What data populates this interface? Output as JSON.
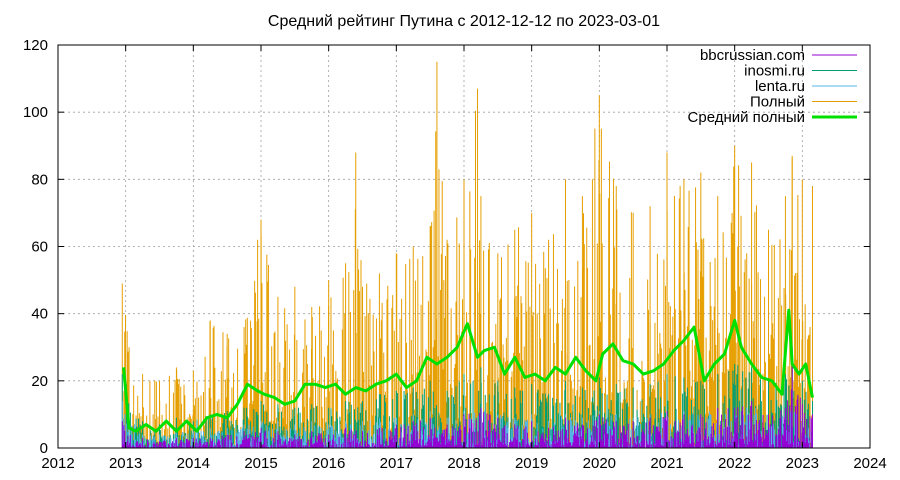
{
  "chart_data": {
    "type": "line",
    "title": "Средний рейтинг Путина с 2012-12-12  по 2023-03-01",
    "xlim": [
      2012,
      2024
    ],
    "ylim": [
      0,
      120
    ],
    "x_ticks": [
      "2012",
      "2013",
      "2014",
      "2015",
      "2016",
      "2017",
      "2018",
      "2019",
      "2020",
      "2021",
      "2022",
      "2023",
      "2024"
    ],
    "y_ticks": [
      "0",
      "20",
      "40",
      "60",
      "80",
      "100",
      "120"
    ],
    "grid": true,
    "legend_position": "top-right",
    "series": [
      {
        "name": "bbcrussian.com",
        "color": "#9400d3",
        "render": "impulses",
        "x": [
          2012.95,
          2013.25,
          2013.5,
          2013.75,
          2014.0,
          2014.25,
          2014.5,
          2014.75,
          2015.0,
          2015.25,
          2015.5,
          2015.75,
          2016.0,
          2016.25,
          2016.5,
          2016.75,
          2017.0,
          2017.25,
          2017.5,
          2017.75,
          2018.0,
          2018.25,
          2018.5,
          2018.75,
          2019.0,
          2019.25,
          2019.5,
          2019.75,
          2020.0,
          2020.25,
          2020.5,
          2020.75,
          2021.0,
          2021.25,
          2021.5,
          2021.75,
          2022.0,
          2022.25,
          2022.5,
          2022.75,
          2022.85,
          2023.0,
          2023.15
        ],
        "values": [
          8,
          3,
          2,
          3,
          3,
          3,
          4,
          5,
          6,
          5,
          4,
          5,
          4,
          6,
          5,
          6,
          7,
          8,
          9,
          7,
          10,
          12,
          9,
          7,
          8,
          6,
          9,
          7,
          10,
          8,
          8,
          9,
          11,
          10,
          10,
          12,
          12,
          14,
          10,
          12,
          30,
          13,
          10
        ]
      },
      {
        "name": "inosmi.ru",
        "color": "#009e73",
        "render": "impulses",
        "x": [
          2012.95,
          2013.25,
          2013.5,
          2013.75,
          2014.0,
          2014.25,
          2014.5,
          2014.75,
          2015.0,
          2015.25,
          2015.5,
          2015.75,
          2016.0,
          2016.25,
          2016.5,
          2016.75,
          2017.0,
          2017.25,
          2017.5,
          2017.75,
          2018.0,
          2018.25,
          2018.5,
          2018.75,
          2019.0,
          2019.25,
          2019.5,
          2019.75,
          2020.0,
          2020.25,
          2020.5,
          2020.75,
          2021.0,
          2021.25,
          2021.5,
          2021.75,
          2022.0,
          2022.25,
          2022.5,
          2022.75,
          2022.85,
          2023.0,
          2023.15
        ],
        "values": [
          22,
          8,
          7,
          9,
          8,
          10,
          11,
          12,
          14,
          13,
          12,
          13,
          12,
          14,
          14,
          16,
          17,
          18,
          20,
          17,
          22,
          24,
          20,
          18,
          19,
          16,
          20,
          18,
          21,
          19,
          18,
          19,
          22,
          21,
          20,
          22,
          25,
          24,
          20,
          22,
          28,
          20,
          14
        ]
      },
      {
        "name": "lenta.ru",
        "color": "#56b4e9",
        "render": "impulses",
        "x": [
          2012.95,
          2013.25,
          2013.5,
          2013.75,
          2014.0,
          2014.25,
          2014.5,
          2014.75,
          2015.0,
          2015.25,
          2015.5,
          2015.75,
          2016.0,
          2016.25,
          2016.5,
          2016.75,
          2017.0,
          2017.25,
          2017.5,
          2017.75,
          2018.0,
          2018.25,
          2018.5,
          2018.75,
          2019.0,
          2019.25,
          2019.5,
          2019.75,
          2020.0,
          2020.25,
          2020.5,
          2020.75,
          2021.0,
          2021.25,
          2021.5,
          2021.75,
          2022.0,
          2022.25,
          2022.5,
          2022.75,
          2022.85,
          2023.0,
          2023.15
        ],
        "values": [
          14,
          4,
          4,
          5,
          5,
          6,
          6,
          7,
          8,
          8,
          7,
          8,
          7,
          8,
          8,
          9,
          9,
          10,
          11,
          9,
          11,
          12,
          10,
          9,
          10,
          8,
          10,
          9,
          11,
          10,
          9,
          10,
          11,
          11,
          10,
          12,
          12,
          13,
          10,
          11,
          14,
          10,
          8
        ]
      },
      {
        "name": "Полный",
        "color": "#e69f00",
        "render": "impulses",
        "x": [
          2012.95,
          2013.05,
          2013.25,
          2013.5,
          2013.75,
          2014.0,
          2014.25,
          2014.5,
          2014.75,
          2014.95,
          2015.0,
          2015.25,
          2015.5,
          2015.75,
          2016.0,
          2016.25,
          2016.4,
          2016.5,
          2016.75,
          2017.0,
          2017.25,
          2017.5,
          2017.6,
          2017.75,
          2018.0,
          2018.2,
          2018.25,
          2018.5,
          2018.75,
          2019.0,
          2019.25,
          2019.5,
          2019.75,
          2020.0,
          2020.25,
          2020.5,
          2020.75,
          2021.0,
          2021.25,
          2021.5,
          2021.75,
          2022.0,
          2022.25,
          2022.5,
          2022.75,
          2022.85,
          2023.0,
          2023.15
        ],
        "values": [
          49,
          30,
          22,
          20,
          24,
          23,
          38,
          34,
          36,
          62,
          68,
          45,
          48,
          42,
          50,
          55,
          88,
          48,
          52,
          58,
          60,
          66,
          115,
          62,
          80,
          107,
          75,
          58,
          65,
          70,
          62,
          80,
          75,
          105,
          78,
          70,
          72,
          88,
          80,
          82,
          75,
          90,
          85,
          65,
          75,
          87,
          80,
          78
        ]
      },
      {
        "name": "Средний полный",
        "color": "#00e000",
        "render": "line",
        "x": [
          2012.97,
          2013.05,
          2013.15,
          2013.3,
          2013.45,
          2013.6,
          2013.75,
          2013.9,
          2014.05,
          2014.2,
          2014.35,
          2014.5,
          2014.65,
          2014.8,
          2014.95,
          2015.05,
          2015.2,
          2015.35,
          2015.5,
          2015.65,
          2015.8,
          2015.95,
          2016.1,
          2016.25,
          2016.4,
          2016.55,
          2016.7,
          2016.85,
          2017.0,
          2017.15,
          2017.3,
          2017.45,
          2017.6,
          2017.75,
          2017.9,
          2018.05,
          2018.2,
          2018.3,
          2018.45,
          2018.6,
          2018.75,
          2018.9,
          2019.05,
          2019.2,
          2019.35,
          2019.5,
          2019.65,
          2019.8,
          2019.95,
          2020.05,
          2020.2,
          2020.35,
          2020.5,
          2020.65,
          2020.8,
          2020.95,
          2021.1,
          2021.25,
          2021.4,
          2021.55,
          2021.7,
          2021.85,
          2022.0,
          2022.1,
          2022.25,
          2022.4,
          2022.55,
          2022.7,
          2022.8,
          2022.85,
          2022.95,
          2023.05,
          2023.15
        ],
        "values": [
          24,
          6,
          5,
          7,
          5,
          8,
          5,
          8,
          5,
          9,
          10,
          9,
          13,
          19,
          17,
          16,
          15,
          13,
          14,
          19,
          19,
          18,
          19,
          16,
          18,
          17,
          19,
          20,
          22,
          18,
          20,
          27,
          25,
          27,
          30,
          37,
          27,
          29,
          30,
          22,
          27,
          21,
          22,
          20,
          24,
          22,
          27,
          23,
          20,
          28,
          31,
          26,
          25,
          22,
          23,
          25,
          29,
          32,
          36,
          20,
          25,
          28,
          38,
          30,
          25,
          21,
          20,
          16,
          41,
          25,
          22,
          25,
          15
        ]
      }
    ]
  }
}
